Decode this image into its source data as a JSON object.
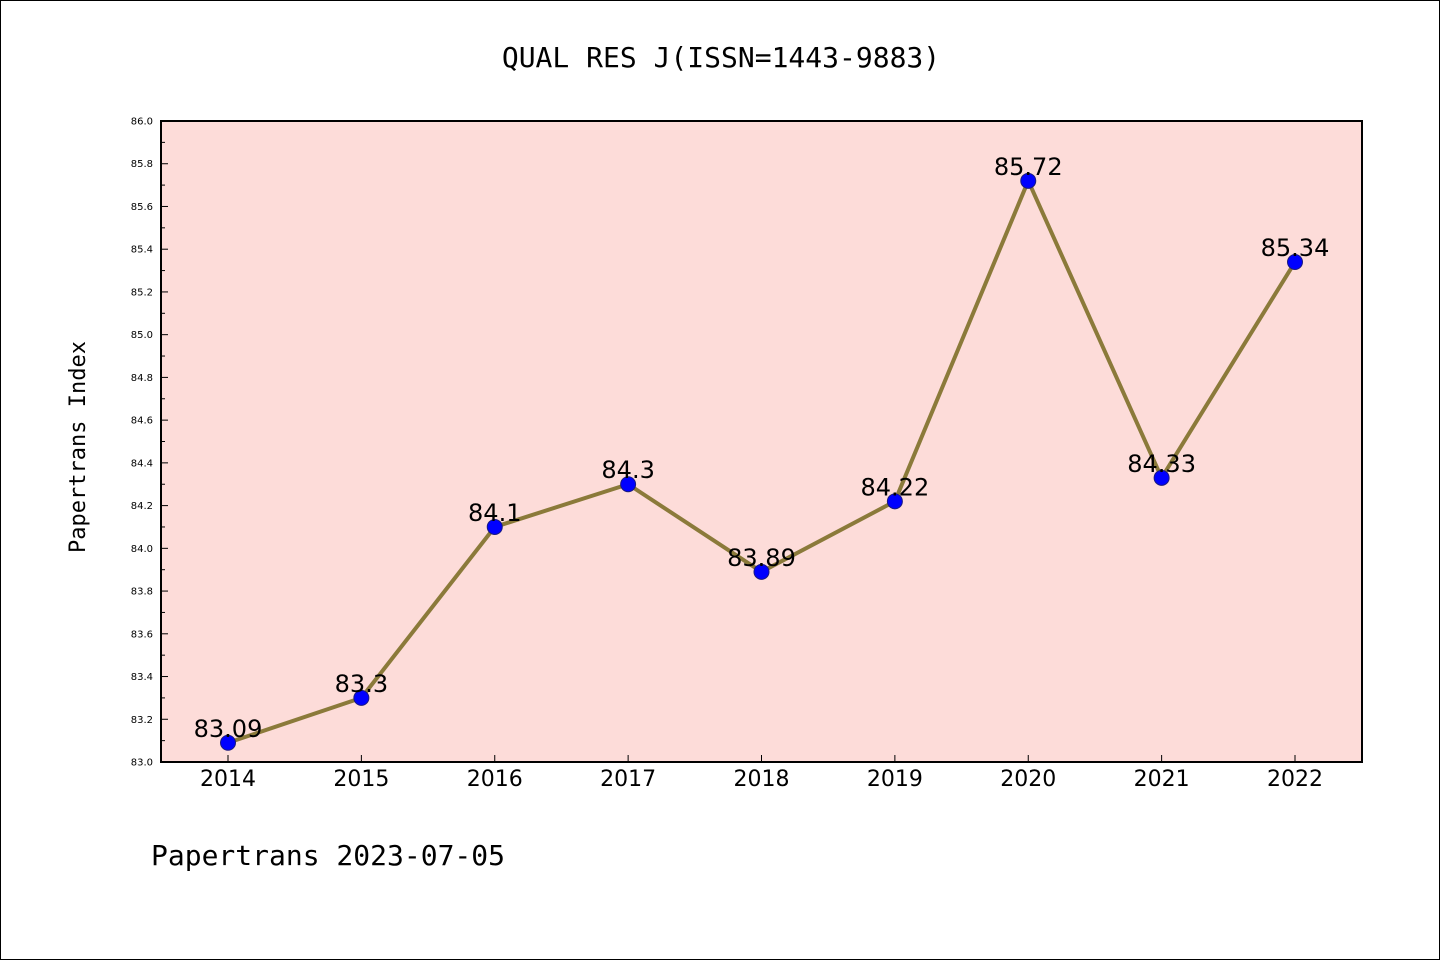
{
  "footer_text": "Papertrans 2023-07-05",
  "colors": {
    "plot_background": "#fddcd9",
    "line": "#8b7a3a",
    "marker": "#0000ff"
  },
  "chart_data": {
    "type": "line",
    "title": "QUAL RES J(ISSN=1443-9883)",
    "xlabel": "",
    "ylabel": "Papertrans Index",
    "categories": [
      "2014",
      "2015",
      "2016",
      "2017",
      "2018",
      "2019",
      "2020",
      "2021",
      "2022"
    ],
    "values": [
      83.09,
      83.3,
      84.1,
      84.3,
      83.89,
      84.22,
      85.72,
      84.33,
      85.34
    ],
    "data_labels": [
      "83.09",
      "83.3",
      "84.1",
      "84.3",
      "83.89",
      "84.22",
      "85.72",
      "84.33",
      "85.34"
    ],
    "ylim": [
      83.0,
      86.0
    ],
    "yticks": [
      "83.0",
      "83.2",
      "83.4",
      "83.6",
      "83.8",
      "84.0",
      "84.2",
      "84.4",
      "84.6",
      "84.8",
      "85.0",
      "85.2",
      "85.4",
      "85.6",
      "85.8",
      "86.0"
    ],
    "grid": false,
    "legend": "none"
  }
}
